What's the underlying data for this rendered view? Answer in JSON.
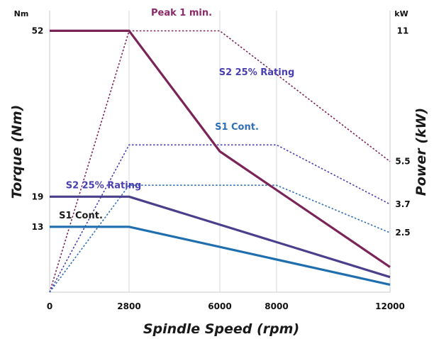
{
  "chart_data": {
    "type": "line",
    "xlabel": "Spindle Speed (rpm)",
    "ylabel_left": "Torque (Nm)",
    "ylabel_right": "Power (kW)",
    "unit_left": "Nm",
    "unit_right": "kW",
    "xlim": [
      0,
      12000
    ],
    "ylim_torque": [
      0,
      56
    ],
    "ylim_power": [
      0,
      11.85
    ],
    "x_ticks": [
      0,
      2800,
      6000,
      8000,
      12000
    ],
    "x_tick_labels": [
      "0",
      "2800",
      "6000",
      "8000",
      "12000"
    ],
    "torque_ticks": [
      13,
      19,
      52
    ],
    "torque_tick_labels": [
      "13",
      "19",
      "52"
    ],
    "power_ticks": [
      11,
      5.5,
      3.7,
      2.5
    ],
    "power_tick_labels": [
      "11",
      "5.5",
      "3.7",
      "2.5"
    ],
    "grid_x": [
      2800,
      6000,
      8000
    ],
    "torque_series": [
      {
        "color": "#7a2458",
        "x": [
          0,
          2800,
          6000,
          12000
        ],
        "y": [
          52,
          52,
          28,
          5
        ]
      },
      {
        "color": "#4a3f8c",
        "x": [
          0,
          2800,
          12000
        ],
        "y": [
          19,
          19,
          3
        ]
      },
      {
        "color": "#1f6fae",
        "x": [
          0,
          2800,
          12000
        ],
        "y": [
          13,
          13,
          1.5
        ]
      }
    ],
    "power_series": [
      {
        "color": "#7a2458",
        "x": [
          0,
          2800,
          6000,
          12000
        ],
        "y": [
          0,
          11,
          11,
          5.5
        ]
      },
      {
        "color": "#4a3fb0",
        "x": [
          0,
          2800,
          8000,
          12000
        ],
        "y": [
          0,
          6.2,
          6.2,
          3.7
        ]
      },
      {
        "color": "#2f6fb5",
        "x": [
          0,
          2800,
          8000,
          12000
        ],
        "y": [
          0,
          4.5,
          4.5,
          2.5
        ]
      }
    ],
    "annotations": [
      {
        "text": "Peak 1 min.",
        "color": "#8a2a6a"
      },
      {
        "text": "S2 25% Rating",
        "color": "#4a3fb0"
      },
      {
        "text": "S2 25% Rating",
        "color": "#4a3fb0"
      },
      {
        "text": "S1 Cont.",
        "color": "#2f6fb5"
      },
      {
        "text": "S1 Cont.",
        "color": "#1a1a1a"
      }
    ],
    "colors": {
      "grid": "#cfd8dc",
      "axis": "#c9c9c9"
    }
  }
}
